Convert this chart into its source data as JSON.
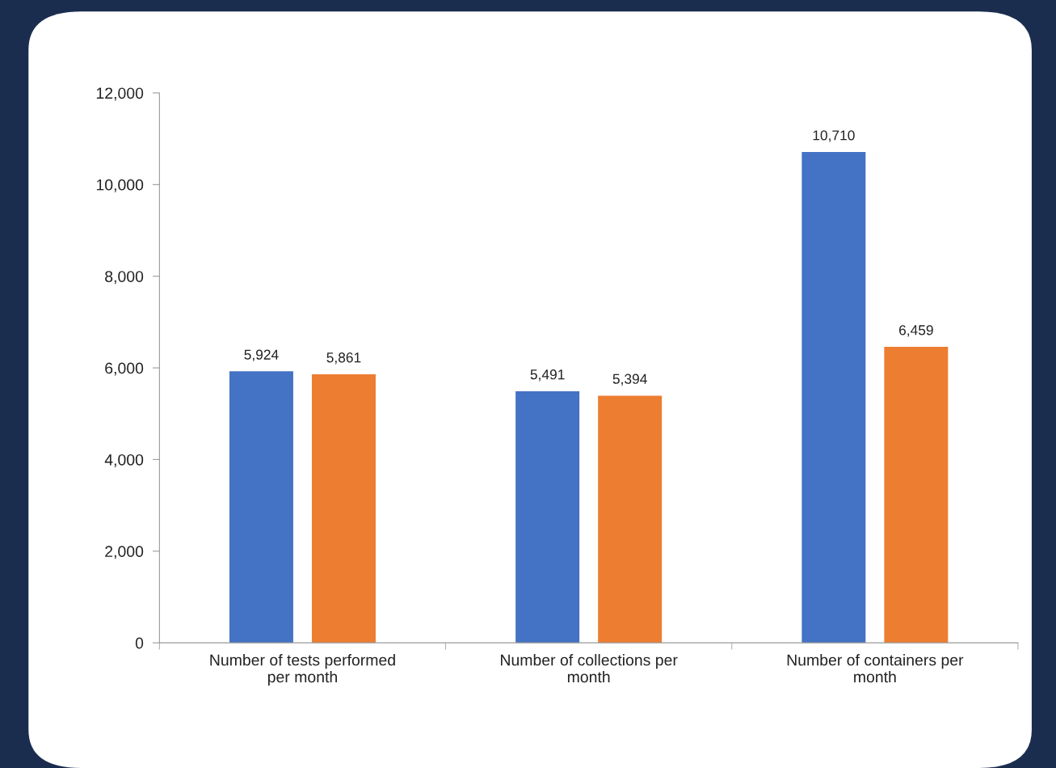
{
  "chart_data": {
    "type": "bar",
    "categories": [
      "Number of tests performed\nper month",
      "Number of collections per\nmonth",
      "Number of containers per\nmonth"
    ],
    "series": [
      {
        "color": "#4472c4",
        "values": [
          5924,
          5491,
          10710
        ]
      },
      {
        "color": "#ed7d31",
        "values": [
          5861,
          5394,
          6459
        ]
      }
    ],
    "ylim": [
      0,
      12000
    ],
    "yticks": [
      {
        "value": 0,
        "label": "0"
      },
      {
        "value": 2000,
        "label": "2,000"
      },
      {
        "value": 4000,
        "label": "4,000"
      },
      {
        "value": 6000,
        "label": "6,000"
      },
      {
        "value": 8000,
        "label": "8,000"
      },
      {
        "value": 10000,
        "label": "10,000"
      },
      {
        "value": 12000,
        "label": "12,000"
      }
    ],
    "value_labels": [
      [
        "5,924",
        "5,491",
        "10,710"
      ],
      [
        "5,861",
        "5,394",
        "6,459"
      ]
    ],
    "grid": false,
    "legend": false
  }
}
